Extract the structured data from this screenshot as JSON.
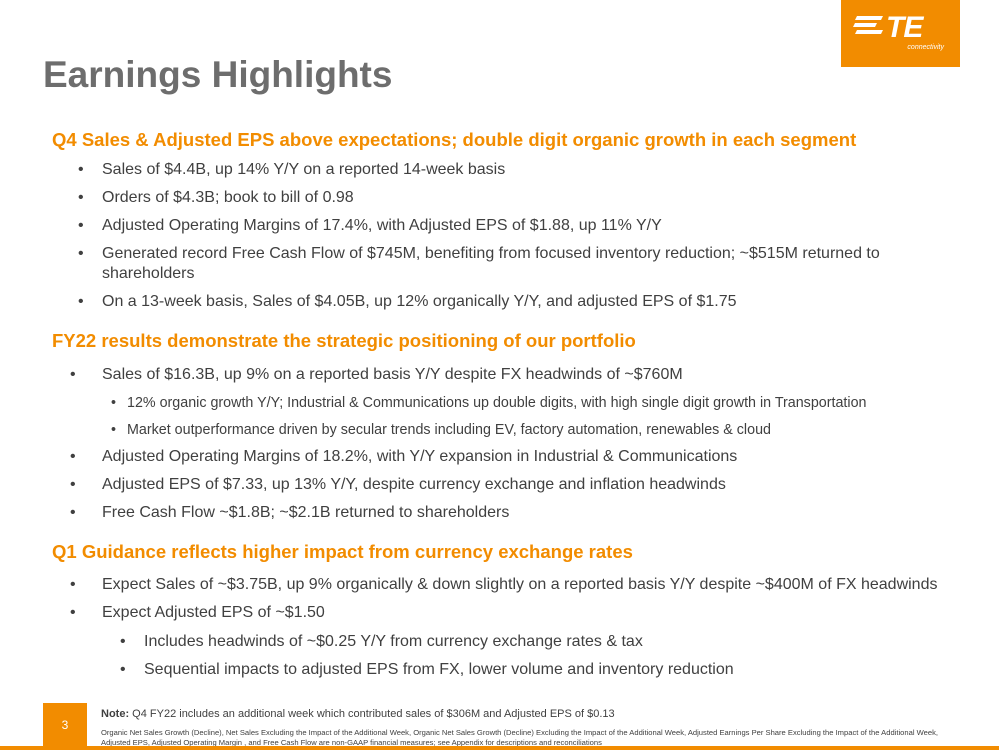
{
  "logo": {
    "text": "TE",
    "sub": "connectivity"
  },
  "title": "Earnings Highlights",
  "sections": [
    {
      "heading": "Q4 Sales & Adjusted EPS above expectations; double digit organic growth in each segment",
      "bullets": [
        "Sales of $4.4B, up 14% Y/Y on a reported 14-week basis",
        "Orders of $4.3B; book to bill of 0.98",
        "Adjusted Operating Margins of 17.4%, with Adjusted EPS of $1.88, up 11% Y/Y",
        "Generated record Free Cash Flow of $745M, benefiting from focused inventory reduction; ~$515M returned to shareholders",
        "On a 13-week basis, Sales of $4.05B, up 12% organically Y/Y, and adjusted EPS of $1.75"
      ]
    },
    {
      "heading": "FY22 results demonstrate the strategic positioning of our portfolio",
      "bullets": [
        "Sales of $16.3B, up 9% on a reported basis Y/Y despite FX headwinds of ~$760M",
        "12% organic growth Y/Y; Industrial & Communications up double digits, with high single digit growth in Transportation",
        "Market outperformance driven by secular trends including EV, factory automation, renewables & cloud",
        "Adjusted Operating Margins of 18.2%, with Y/Y expansion in Industrial & Communications",
        "Adjusted EPS of $7.33, up 13% Y/Y, despite currency exchange and inflation headwinds",
        "Free Cash Flow ~$1.8B; ~$2.1B returned to shareholders"
      ]
    },
    {
      "heading": "Q1 Guidance reflects higher impact from currency exchange rates",
      "bullets": [
        "Expect Sales of ~$3.75B, up 9% organically & down slightly on a reported basis Y/Y despite ~$400M of FX headwinds",
        "Expect Adjusted EPS of ~$1.50",
        "Includes headwinds of ~$0.25 Y/Y from currency exchange rates & tax",
        "Sequential impacts to adjusted EPS from FX, lower volume and inventory reduction"
      ]
    }
  ],
  "bullet_char": "•",
  "footer": {
    "page_number": "3",
    "note_label": "Note:",
    "note_text": "Q4 FY22 includes an additional week which contributed sales of $306M and Adjusted EPS of $0.13",
    "disclaimer": "Organic Net Sales Growth (Decline), Net Sales Excluding the Impact of the Additional Week, Organic Net Sales Growth (Decline) Excluding the Impact of the Additional Week, Adjusted Earnings Per Share Excluding the Impact of the Additional Week, Adjusted EPS, Adjusted Operating Margin , and Free Cash Flow are non-GAAP financial measures; see Appendix for descriptions and reconciliations"
  },
  "colors": {
    "accent": "#F28C00",
    "title": "#6d6d6d",
    "text": "#404040"
  }
}
